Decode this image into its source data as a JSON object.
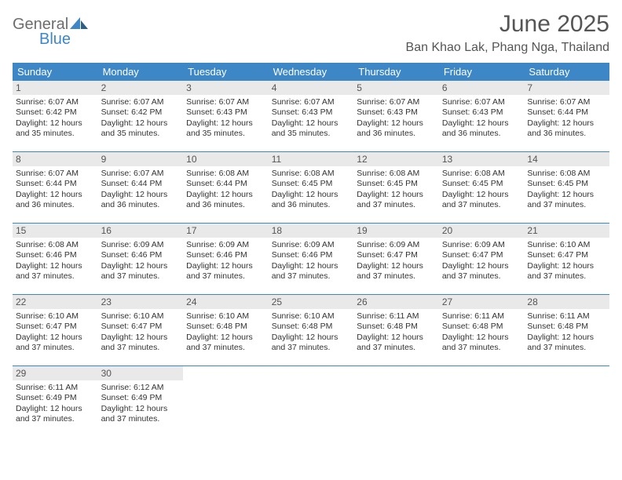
{
  "brand": {
    "part1": "General",
    "part2": "Blue",
    "part1_color": "#6d6d6d",
    "part2_color": "#3d87c7"
  },
  "title": "June 2025",
  "location": "Ban Khao Lak, Phang Nga, Thailand",
  "colors": {
    "header_bg": "#3d87c7",
    "daynum_bg": "#e9e9e9",
    "text": "#333333",
    "title": "#555555",
    "border": "#3d87c7"
  },
  "fonts": {
    "title_size": 30,
    "location_size": 16,
    "weekday_size": 13,
    "daynum_size": 12,
    "body_size": 10.5
  },
  "weekdays": [
    "Sunday",
    "Monday",
    "Tuesday",
    "Wednesday",
    "Thursday",
    "Friday",
    "Saturday"
  ],
  "days": [
    {
      "n": 1,
      "sunrise": "6:07 AM",
      "sunset": "6:42 PM",
      "daylight": "12 hours and 35 minutes."
    },
    {
      "n": 2,
      "sunrise": "6:07 AM",
      "sunset": "6:42 PM",
      "daylight": "12 hours and 35 minutes."
    },
    {
      "n": 3,
      "sunrise": "6:07 AM",
      "sunset": "6:43 PM",
      "daylight": "12 hours and 35 minutes."
    },
    {
      "n": 4,
      "sunrise": "6:07 AM",
      "sunset": "6:43 PM",
      "daylight": "12 hours and 35 minutes."
    },
    {
      "n": 5,
      "sunrise": "6:07 AM",
      "sunset": "6:43 PM",
      "daylight": "12 hours and 36 minutes."
    },
    {
      "n": 6,
      "sunrise": "6:07 AM",
      "sunset": "6:43 PM",
      "daylight": "12 hours and 36 minutes."
    },
    {
      "n": 7,
      "sunrise": "6:07 AM",
      "sunset": "6:44 PM",
      "daylight": "12 hours and 36 minutes."
    },
    {
      "n": 8,
      "sunrise": "6:07 AM",
      "sunset": "6:44 PM",
      "daylight": "12 hours and 36 minutes."
    },
    {
      "n": 9,
      "sunrise": "6:07 AM",
      "sunset": "6:44 PM",
      "daylight": "12 hours and 36 minutes."
    },
    {
      "n": 10,
      "sunrise": "6:08 AM",
      "sunset": "6:44 PM",
      "daylight": "12 hours and 36 minutes."
    },
    {
      "n": 11,
      "sunrise": "6:08 AM",
      "sunset": "6:45 PM",
      "daylight": "12 hours and 36 minutes."
    },
    {
      "n": 12,
      "sunrise": "6:08 AM",
      "sunset": "6:45 PM",
      "daylight": "12 hours and 37 minutes."
    },
    {
      "n": 13,
      "sunrise": "6:08 AM",
      "sunset": "6:45 PM",
      "daylight": "12 hours and 37 minutes."
    },
    {
      "n": 14,
      "sunrise": "6:08 AM",
      "sunset": "6:45 PM",
      "daylight": "12 hours and 37 minutes."
    },
    {
      "n": 15,
      "sunrise": "6:08 AM",
      "sunset": "6:46 PM",
      "daylight": "12 hours and 37 minutes."
    },
    {
      "n": 16,
      "sunrise": "6:09 AM",
      "sunset": "6:46 PM",
      "daylight": "12 hours and 37 minutes."
    },
    {
      "n": 17,
      "sunrise": "6:09 AM",
      "sunset": "6:46 PM",
      "daylight": "12 hours and 37 minutes."
    },
    {
      "n": 18,
      "sunrise": "6:09 AM",
      "sunset": "6:46 PM",
      "daylight": "12 hours and 37 minutes."
    },
    {
      "n": 19,
      "sunrise": "6:09 AM",
      "sunset": "6:47 PM",
      "daylight": "12 hours and 37 minutes."
    },
    {
      "n": 20,
      "sunrise": "6:09 AM",
      "sunset": "6:47 PM",
      "daylight": "12 hours and 37 minutes."
    },
    {
      "n": 21,
      "sunrise": "6:10 AM",
      "sunset": "6:47 PM",
      "daylight": "12 hours and 37 minutes."
    },
    {
      "n": 22,
      "sunrise": "6:10 AM",
      "sunset": "6:47 PM",
      "daylight": "12 hours and 37 minutes."
    },
    {
      "n": 23,
      "sunrise": "6:10 AM",
      "sunset": "6:47 PM",
      "daylight": "12 hours and 37 minutes."
    },
    {
      "n": 24,
      "sunrise": "6:10 AM",
      "sunset": "6:48 PM",
      "daylight": "12 hours and 37 minutes."
    },
    {
      "n": 25,
      "sunrise": "6:10 AM",
      "sunset": "6:48 PM",
      "daylight": "12 hours and 37 minutes."
    },
    {
      "n": 26,
      "sunrise": "6:11 AM",
      "sunset": "6:48 PM",
      "daylight": "12 hours and 37 minutes."
    },
    {
      "n": 27,
      "sunrise": "6:11 AM",
      "sunset": "6:48 PM",
      "daylight": "12 hours and 37 minutes."
    },
    {
      "n": 28,
      "sunrise": "6:11 AM",
      "sunset": "6:48 PM",
      "daylight": "12 hours and 37 minutes."
    },
    {
      "n": 29,
      "sunrise": "6:11 AM",
      "sunset": "6:49 PM",
      "daylight": "12 hours and 37 minutes."
    },
    {
      "n": 30,
      "sunrise": "6:12 AM",
      "sunset": "6:49 PM",
      "daylight": "12 hours and 37 minutes."
    }
  ],
  "labels": {
    "sunrise": "Sunrise:",
    "sunset": "Sunset:",
    "daylight": "Daylight:"
  },
  "layout": {
    "first_weekday_index": 0,
    "cols": 7,
    "rows": 5
  }
}
